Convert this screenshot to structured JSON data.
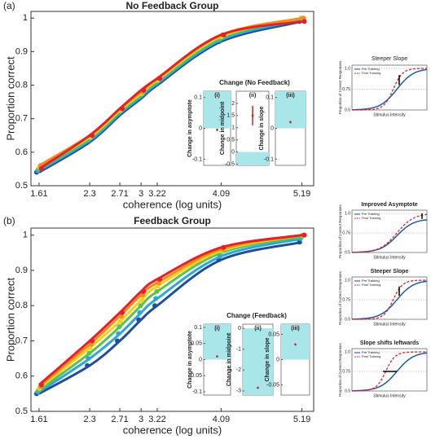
{
  "chart_data": [
    {
      "type": "line",
      "panel": "(a)",
      "title": "No Feedback Group",
      "xlabel": "coherence (log units)",
      "ylabel": "Proportion correct",
      "xlim": [
        1.5,
        5.35
      ],
      "ylim": [
        0.5,
        1.02
      ],
      "xticks": [
        1.61,
        2.3,
        2.71,
        3,
        3.22,
        4.09,
        5.19
      ],
      "yticks": [
        0.5,
        0.6,
        0.7,
        0.8,
        0.9,
        1
      ],
      "x": [
        1.61,
        2.3,
        2.71,
        3,
        3.22,
        4.09,
        5.19
      ],
      "series": [
        {
          "color": "#1f4e9c",
          "values": [
            0.54,
            0.63,
            0.71,
            0.76,
            0.8,
            0.93,
            0.99
          ]
        },
        {
          "color": "#2aa8d8",
          "values": [
            0.545,
            0.635,
            0.715,
            0.765,
            0.805,
            0.935,
            0.995
          ]
        },
        {
          "color": "#5cc24a",
          "values": [
            0.55,
            0.64,
            0.72,
            0.77,
            0.81,
            0.94,
            1
          ]
        },
        {
          "color": "#f2d21b",
          "values": [
            0.555,
            0.645,
            0.725,
            0.775,
            0.815,
            0.945,
            1
          ]
        },
        {
          "color": "#f28c1b",
          "values": [
            0.56,
            0.65,
            0.73,
            0.78,
            0.82,
            0.95,
            1
          ]
        },
        {
          "color": "#e5202a",
          "values": [
            0.55,
            0.65,
            0.73,
            0.785,
            0.82,
            0.95,
            0.99
          ]
        }
      ],
      "insets": {
        "title": "Change  (No Feedback)",
        "panels": [
          {
            "label": "(i)",
            "ylabel": "Change in asymptote",
            "ylim": [
              -0.12,
              0.12
            ],
            "yticks": [
              0.1,
              0,
              -0.1
            ],
            "shade": "above",
            "value": -0.005,
            "error": 0.004
          },
          {
            "label": "(ii)",
            "ylabel": "Change in midpoint",
            "ylim": [
              -0.55,
              2.5
            ],
            "yticks": [
              2,
              1.5,
              1,
              0.5,
              0,
              -0.5
            ],
            "shade": "below",
            "value": 1.5,
            "error": 0.4
          },
          {
            "label": "(iii)",
            "ylabel": "Change in slope",
            "ylim": [
              -0.12,
              0.12
            ],
            "yticks": [
              0.1,
              0,
              -0.1
            ],
            "shade": "above",
            "value": 0.02,
            "error": 0.004
          }
        ]
      }
    },
    {
      "type": "line",
      "panel": "(b)",
      "title": "Feedback Group",
      "xlabel": "coherence (log units)",
      "ylabel": "Proportion correct",
      "xlim": [
        1.5,
        5.35
      ],
      "ylim": [
        0.5,
        1.02
      ],
      "xticks": [
        1.61,
        2.3,
        2.71,
        3,
        3.22,
        4.09,
        5.19
      ],
      "yticks": [
        0.5,
        0.6,
        0.7,
        0.8,
        0.9,
        1
      ],
      "x": [
        1.61,
        2.3,
        2.71,
        3,
        3.22,
        4.09,
        5.19
      ],
      "series": [
        {
          "color": "#1f4e9c",
          "values": [
            0.55,
            0.63,
            0.7,
            0.76,
            0.8,
            0.93,
            0.98
          ]
        },
        {
          "color": "#2aa8d8",
          "values": [
            0.555,
            0.65,
            0.72,
            0.78,
            0.82,
            0.94,
            0.99
          ]
        },
        {
          "color": "#5cc24a",
          "values": [
            0.56,
            0.665,
            0.74,
            0.8,
            0.84,
            0.95,
            0.995
          ]
        },
        {
          "color": "#f2d21b",
          "values": [
            0.565,
            0.68,
            0.755,
            0.815,
            0.855,
            0.955,
            1
          ]
        },
        {
          "color": "#f28c1b",
          "values": [
            0.57,
            0.69,
            0.77,
            0.83,
            0.865,
            0.96,
            1
          ]
        },
        {
          "color": "#e5202a",
          "values": [
            0.575,
            0.7,
            0.78,
            0.84,
            0.875,
            0.965,
            1
          ]
        }
      ],
      "insets": {
        "title": "Change  (Feedback)",
        "panels": [
          {
            "label": "(i)",
            "ylabel": "Change in asymptote",
            "ylim": [
              -0.11,
              0.11
            ],
            "yticks": [
              0.1,
              0.05,
              0,
              -0.05,
              -0.1
            ],
            "shade": "above",
            "value": 0.01,
            "error": 0.003
          },
          {
            "label": "(ii)",
            "ylabel": "Change in midpoint",
            "ylim": [
              -3.2,
              0.2
            ],
            "yticks": [
              0,
              -1,
              -2,
              -3
            ],
            "shade": "below",
            "value": -2.85,
            "error": 0.05
          },
          {
            "label": "(iii)",
            "ylabel": "Change in slope",
            "ylim": [
              -0.07,
              0.07
            ],
            "yticks": [
              0.05,
              0,
              -0.05
            ],
            "shade": "above",
            "value": 0.03,
            "error": 0.002
          }
        ]
      }
    }
  ],
  "schematics": {
    "ylabel": "Proportion of Correct Responses",
    "xlabel": "Stimulus Intensity",
    "legend": [
      "Pre Training",
      "Post Training"
    ],
    "yticks": [
      0.5,
      0.75,
      {
        "value": 1,
        "label": "1.0"
      }
    ],
    "panels": [
      {
        "title": "Steeper Slope",
        "kind": "slope"
      },
      {
        "title": "Improved Asymptote",
        "kind": "asymptote"
      },
      {
        "title": "Steeper Slope",
        "kind": "slope"
      },
      {
        "title": "Slope shifts leftwards",
        "kind": "shift"
      }
    ]
  }
}
